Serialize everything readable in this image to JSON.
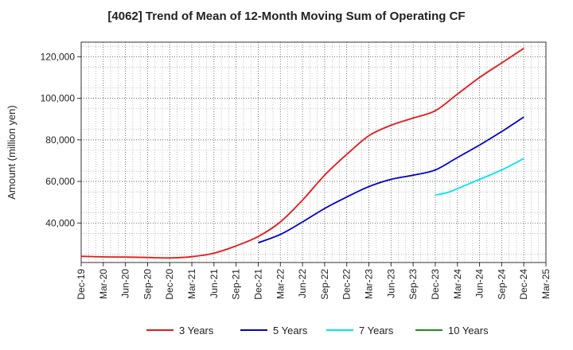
{
  "chart_data": {
    "type": "line",
    "title": "[4062]  Trend of Mean of 12-Month Moving Sum of Operating CF",
    "xlabel": "",
    "ylabel": "Amount (million yen)",
    "ylim": [
      21000,
      127000
    ],
    "yticks": [
      40000,
      60000,
      80000,
      100000,
      120000
    ],
    "ytick_labels": [
      "40,000",
      "60,000",
      "80,000",
      "100,000",
      "120,000"
    ],
    "grid": true,
    "legend_position": "bottom",
    "categories": [
      "Dec-19",
      "Mar-20",
      "Jun-20",
      "Sep-20",
      "Dec-20",
      "Mar-21",
      "Jun-21",
      "Sep-21",
      "Dec-21",
      "Mar-22",
      "Jun-22",
      "Sep-22",
      "Dec-22",
      "Mar-23",
      "Jun-23",
      "Sep-23",
      "Dec-23",
      "Mar-24",
      "Jun-24",
      "Sep-24",
      "Dec-24",
      "Mar-25"
    ],
    "series": [
      {
        "name": "3 Years",
        "color": "#e41a1c",
        "points": [
          [
            0,
            24000
          ],
          [
            1,
            23700
          ],
          [
            2,
            23600
          ],
          [
            3,
            23400
          ],
          [
            4,
            23200
          ],
          [
            5,
            23800
          ],
          [
            6,
            25500
          ],
          [
            7,
            29000
          ],
          [
            8,
            33500
          ],
          [
            9,
            40500
          ],
          [
            10,
            51000
          ],
          [
            11,
            63000
          ],
          [
            12,
            73000
          ],
          [
            13,
            82000
          ],
          [
            14,
            87000
          ],
          [
            15,
            90500
          ],
          [
            16,
            94000
          ],
          [
            17,
            102000
          ],
          [
            18,
            110000
          ],
          [
            19,
            117000
          ],
          [
            20,
            124000
          ]
        ]
      },
      {
        "name": "5 Years",
        "color": "#0000cc",
        "points": [
          [
            8,
            30500
          ],
          [
            9,
            34500
          ],
          [
            10,
            40500
          ],
          [
            11,
            47000
          ],
          [
            12,
            52500
          ],
          [
            13,
            57500
          ],
          [
            14,
            61000
          ],
          [
            15,
            63000
          ],
          [
            16,
            65500
          ],
          [
            17,
            71500
          ],
          [
            18,
            77500
          ],
          [
            19,
            84000
          ],
          [
            20,
            91000
          ]
        ]
      },
      {
        "name": "7 Years",
        "color": "#00e5ee",
        "points": [
          [
            16,
            53500
          ],
          [
            16.5,
            54500
          ],
          [
            17,
            56500
          ],
          [
            18,
            61000
          ],
          [
            19,
            65500
          ],
          [
            20,
            71000
          ]
        ]
      },
      {
        "name": "10 Years",
        "color": "#228b22",
        "points": []
      }
    ]
  }
}
